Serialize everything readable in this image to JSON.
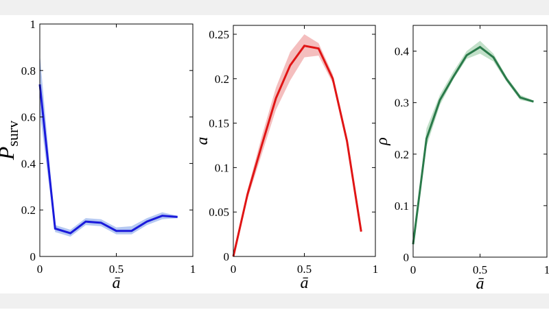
{
  "chart_data": [
    {
      "type": "line",
      "x_label": "ā",
      "y_label": "P",
      "y_label_sub": "surv",
      "x": [
        0,
        0.1,
        0.2,
        0.3,
        0.4,
        0.5,
        0.6,
        0.7,
        0.8,
        0.9
      ],
      "series": [
        {
          "color": "#1a1adb",
          "band_color": "#a9bff0",
          "values": [
            0.74,
            0.12,
            0.1,
            0.15,
            0.145,
            0.11,
            0.11,
            0.15,
            0.175,
            0.17
          ],
          "upper": [
            0.87,
            0.135,
            0.115,
            0.165,
            0.16,
            0.125,
            0.13,
            0.165,
            0.19,
            0.175
          ],
          "lower": [
            0.62,
            0.105,
            0.085,
            0.135,
            0.13,
            0.095,
            0.095,
            0.135,
            0.16,
            0.165
          ]
        }
      ],
      "xlim": [
        0,
        1
      ],
      "xticks": [
        0,
        0.5,
        1
      ],
      "ylim": [
        0,
        1
      ],
      "yticks": [
        0,
        0.2,
        0.4,
        0.6,
        0.8,
        1
      ]
    },
    {
      "type": "line",
      "x_label": "ā",
      "y_label": "a",
      "x": [
        0,
        0.1,
        0.2,
        0.3,
        0.4,
        0.5,
        0.6,
        0.7,
        0.8,
        0.9
      ],
      "series": [
        {
          "color": "#e01515",
          "band_color": "#f2b3b3",
          "values": [
            0,
            0.07,
            0.125,
            0.178,
            0.215,
            0.237,
            0.234,
            0.2,
            0.13,
            0.028
          ],
          "upper": [
            0,
            0.075,
            0.135,
            0.19,
            0.23,
            0.25,
            0.24,
            0.205,
            0.135,
            0.03
          ],
          "lower": [
            0,
            0.065,
            0.115,
            0.165,
            0.198,
            0.224,
            0.226,
            0.195,
            0.125,
            0.026
          ]
        }
      ],
      "xlim": [
        0,
        1
      ],
      "xticks": [
        0,
        0.5,
        1
      ],
      "ylim": [
        0,
        0.26
      ],
      "yticks": [
        0,
        0.05,
        0.1,
        0.15,
        0.2,
        0.25
      ]
    },
    {
      "type": "line",
      "x_label": "ā",
      "y_label": "ρ",
      "x": [
        0,
        0.1,
        0.2,
        0.3,
        0.4,
        0.5,
        0.6,
        0.7,
        0.8,
        0.9
      ],
      "series": [
        {
          "color": "#2a7a4a",
          "band_color": "#b7dbbf",
          "values": [
            0.025,
            0.23,
            0.305,
            0.35,
            0.392,
            0.408,
            0.388,
            0.345,
            0.31,
            0.302
          ],
          "upper": [
            0.03,
            0.25,
            0.315,
            0.36,
            0.4,
            0.42,
            0.395,
            0.35,
            0.315,
            0.304
          ],
          "lower": [
            0.02,
            0.215,
            0.295,
            0.345,
            0.385,
            0.395,
            0.38,
            0.34,
            0.305,
            0.3
          ]
        }
      ],
      "xlim": [
        0,
        1
      ],
      "xticks": [
        0,
        0.5,
        1
      ],
      "ylim": [
        0,
        0.45
      ],
      "yticks": [
        0,
        0.1,
        0.2,
        0.3,
        0.4
      ]
    }
  ]
}
